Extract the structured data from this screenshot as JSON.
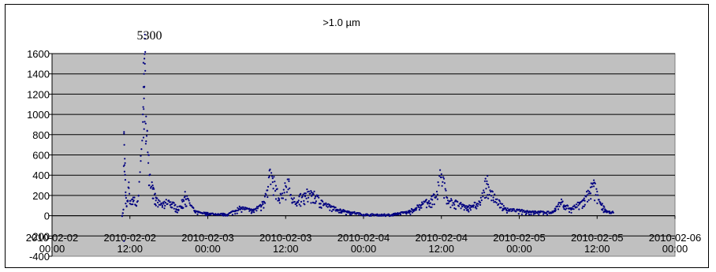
{
  "chart_data": {
    "type": "scatter",
    "title": ">1.0 µm",
    "xlabel": "",
    "ylabel": "",
    "ylim": [
      -400,
      1600
    ],
    "y_ticks": [
      -400,
      -200,
      0,
      200,
      400,
      600,
      800,
      1000,
      1200,
      1400,
      1600
    ],
    "xlim": [
      "2010-02-02 00:00",
      "2010-02-06 00:00"
    ],
    "x_ticks": [
      [
        "2010-02-02",
        "00:00"
      ],
      [
        "2010-02-02",
        "12:00"
      ],
      [
        "2010-02-03",
        "00:00"
      ],
      [
        "2010-02-03",
        "12:00"
      ],
      [
        "2010-02-04",
        "00:00"
      ],
      [
        "2010-02-04",
        "12:00"
      ],
      [
        "2010-02-05",
        "00:00"
      ],
      [
        "2010-02-05",
        "12:00"
      ],
      [
        "2010-02-06",
        "00:00"
      ]
    ],
    "grid": true,
    "legend": "none",
    "marker_color": "#000080",
    "plot_background": "#c0c0c0",
    "annotations": [
      {
        "text": "5300",
        "x": "2010-02-02 15:00"
      }
    ],
    "series": [
      {
        "values": [
          [
            "2010-02-02 10:48",
            0
          ],
          [
            "2010-02-02 11:00",
            60
          ],
          [
            "2010-02-02 11:06",
            810
          ],
          [
            "2010-02-02 11:10",
            500
          ],
          [
            "2010-02-02 11:15",
            520
          ],
          [
            "2010-02-02 11:20",
            200
          ],
          [
            "2010-02-02 11:30",
            90
          ],
          [
            "2010-02-02 11:40",
            150
          ],
          [
            "2010-02-02 11:50",
            330
          ],
          [
            "2010-02-02 12:00",
            120
          ],
          [
            "2010-02-02 12:30",
            180
          ],
          [
            "2010-02-02 13:00",
            100
          ],
          [
            "2010-02-02 13:20",
            200
          ],
          [
            "2010-02-02 13:40",
            540
          ],
          [
            "2010-02-02 14:00",
            1000
          ],
          [
            "2010-02-02 14:05",
            1270
          ],
          [
            "2010-02-02 14:10",
            1400
          ],
          [
            "2010-02-02 14:14",
            1550
          ],
          [
            "2010-02-02 14:18",
            1500
          ],
          [
            "2010-02-02 14:22",
            1430
          ],
          [
            "2010-02-02 14:30",
            980
          ],
          [
            "2010-02-02 14:40",
            840
          ],
          [
            "2010-02-02 14:50",
            600
          ],
          [
            "2010-02-02 15:00",
            400
          ],
          [
            "2010-02-02 15:30",
            300
          ],
          [
            "2010-02-02 16:00",
            150
          ],
          [
            "2010-02-02 17:00",
            100
          ],
          [
            "2010-02-02 18:00",
            150
          ],
          [
            "2010-02-02 19:30",
            60
          ],
          [
            "2010-02-02 20:30",
            190
          ],
          [
            "2010-02-02 22:00",
            40
          ],
          [
            "2010-02-03 00:00",
            20
          ],
          [
            "2010-02-03 03:00",
            10
          ],
          [
            "2010-02-03 05:00",
            80
          ],
          [
            "2010-02-03 07:00",
            50
          ],
          [
            "2010-02-03 08:30",
            120
          ],
          [
            "2010-02-03 09:30",
            390
          ],
          [
            "2010-02-03 10:00",
            370
          ],
          [
            "2010-02-03 11:00",
            150
          ],
          [
            "2010-02-03 12:30",
            340
          ],
          [
            "2010-02-03 13:00",
            130
          ],
          [
            "2010-02-03 15:00",
            200
          ],
          [
            "2010-02-03 16:00",
            230
          ],
          [
            "2010-02-03 18:00",
            110
          ],
          [
            "2010-02-03 20:00",
            60
          ],
          [
            "2010-02-04 00:00",
            10
          ],
          [
            "2010-02-04 04:00",
            5
          ],
          [
            "2010-02-04 07:00",
            40
          ],
          [
            "2010-02-04 09:00",
            110
          ],
          [
            "2010-02-04 11:00",
            180
          ],
          [
            "2010-02-04 12:00",
            410
          ],
          [
            "2010-02-04 13:00",
            150
          ],
          [
            "2010-02-04 16:00",
            80
          ],
          [
            "2010-02-04 18:00",
            130
          ],
          [
            "2010-02-04 19:00",
            340
          ],
          [
            "2010-02-04 20:00",
            180
          ],
          [
            "2010-02-04 22:00",
            60
          ],
          [
            "2010-02-05 02:00",
            40
          ],
          [
            "2010-02-05 05:00",
            30
          ],
          [
            "2010-02-05 06:30",
            130
          ],
          [
            "2010-02-05 08:00",
            60
          ],
          [
            "2010-02-05 10:00",
            150
          ],
          [
            "2010-02-05 11:00",
            280
          ],
          [
            "2010-02-05 11:30",
            290
          ],
          [
            "2010-02-05 12:30",
            120
          ],
          [
            "2010-02-05 13:30",
            40
          ],
          [
            "2010-02-05 14:30",
            30
          ]
        ]
      }
    ]
  }
}
